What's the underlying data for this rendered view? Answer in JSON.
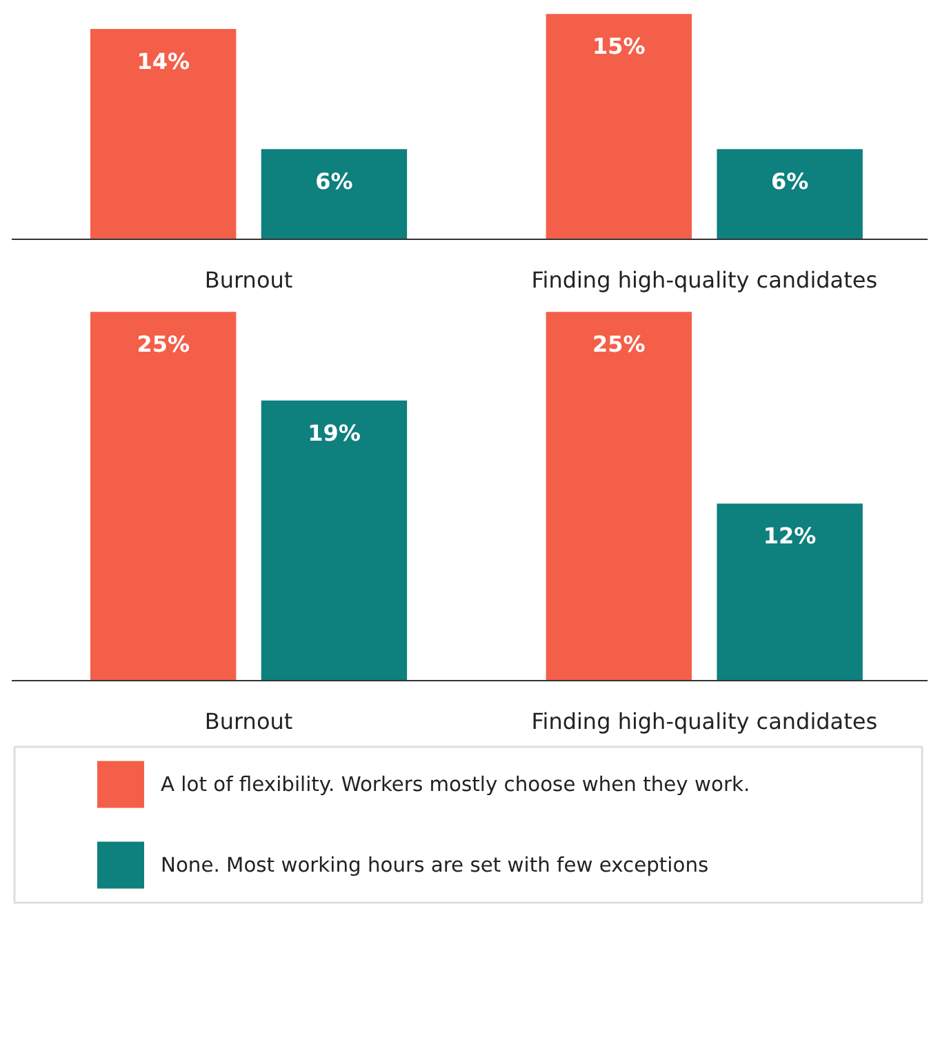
{
  "chart_data": [
    {
      "type": "bar",
      "categories": [
        "Burnout",
        "Finding high-quality candidates"
      ],
      "series": [
        {
          "name": "A lot of flexibility. Workers mostly choose when they work.",
          "color": "#f45f4a",
          "values": [
            14,
            15
          ],
          "value_labels": [
            "14%",
            "15%"
          ]
        },
        {
          "name": "None. Most working hours are set with few exceptions",
          "color": "#0e807e",
          "values": [
            6,
            6
          ],
          "value_labels": [
            "6%",
            "6%"
          ]
        }
      ],
      "tick_labels": "x",
      "legend": "bottom",
      "grid": false
    },
    {
      "type": "bar",
      "categories": [
        "Burnout",
        "Finding high-quality candidates"
      ],
      "series": [
        {
          "color": "#f45f4a",
          "values": [
            25,
            25
          ],
          "value_labels": [
            "25%",
            "25%"
          ]
        },
        {
          "color": "#0e807e",
          "values": [
            19,
            12
          ],
          "value_labels": [
            "19%",
            "12%"
          ]
        }
      ],
      "tick_labels": "x",
      "grid": false
    }
  ]
}
